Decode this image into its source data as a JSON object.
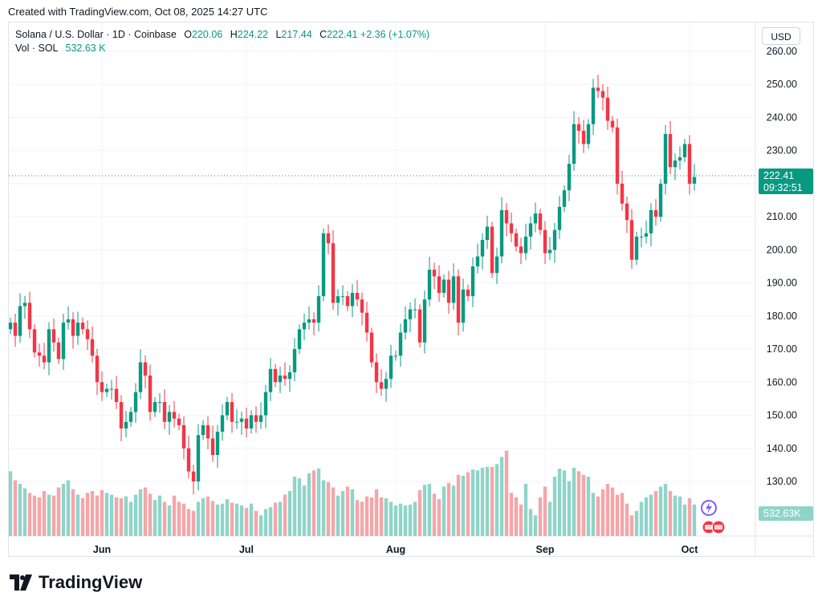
{
  "caption": "Created with TradingView.com, Oct 08, 2025 14:27 UTC",
  "legend": {
    "symbol": "Solana / U.S. Dollar · 1D · Coinbase",
    "o_label": "O",
    "o_value": "220.06",
    "h_label": "H",
    "h_value": "224.22",
    "l_label": "L",
    "l_value": "217.44",
    "c_label": "C",
    "c_value": "222.41",
    "change": "+2.36 (+1.07%)",
    "vol_label": "Vol · SOL",
    "vol_value": "532.63 K"
  },
  "currency": "USD",
  "brand": "TradingView",
  "colors": {
    "up": "#089981",
    "down": "#f23645",
    "upVol": "#8fd4c8",
    "downVol": "#f4a6a9"
  },
  "chart_data": {
    "type": "candlestick",
    "ylim": [
      120,
      265
    ],
    "yticks": [
      "130.00",
      "140.00",
      "150.00",
      "160.00",
      "170.00",
      "180.00",
      "190.00",
      "200.00",
      "210.00",
      "220.00",
      "230.00",
      "240.00",
      "250.00",
      "260.00"
    ],
    "xticks": [
      {
        "label": "Jun",
        "index": 19
      },
      {
        "label": "Jul",
        "index": 49
      },
      {
        "label": "Aug",
        "index": 80
      },
      {
        "label": "Sep",
        "index": 111
      },
      {
        "label": "Oct",
        "index": 141
      }
    ],
    "last_price_label": "222.41",
    "countdown_label": "09:32:51",
    "volume_label": "532.63K",
    "closes": [
      178,
      174,
      183,
      184,
      176,
      169,
      168,
      166,
      176,
      172,
      167,
      178,
      179,
      174,
      178,
      176,
      173,
      168,
      160,
      157,
      158,
      158,
      154,
      146,
      148,
      151,
      157,
      166,
      162,
      151,
      154,
      154,
      148,
      151,
      149,
      147,
      140,
      133,
      130,
      144,
      147,
      143,
      138,
      145,
      150,
      154,
      148,
      148,
      149,
      146,
      150,
      148,
      150,
      157,
      164,
      160,
      162,
      161,
      163,
      170,
      176,
      178,
      179,
      178,
      186,
      205,
      202,
      184,
      186,
      186,
      183,
      187,
      185,
      181,
      175,
      166,
      160,
      158,
      161,
      168,
      168,
      175,
      179,
      182,
      182,
      172,
      185,
      194,
      192,
      187,
      191,
      184,
      192,
      178,
      188,
      186,
      195,
      198,
      203,
      207,
      193,
      198,
      212,
      208,
      205,
      201,
      199,
      204,
      208,
      211,
      206,
      199,
      200,
      206,
      213,
      218,
      226,
      238,
      236,
      232,
      238,
      249,
      248,
      246,
      239,
      237,
      220,
      214,
      209,
      197,
      204,
      204,
      205,
      212,
      210,
      220,
      235,
      225,
      227,
      228,
      232,
      220,
      222
    ],
    "volume": [
      72,
      62,
      58,
      53,
      48,
      45,
      43,
      50,
      46,
      45,
      54,
      58,
      62,
      52,
      46,
      42,
      48,
      50,
      45,
      51,
      48,
      46,
      43,
      42,
      44,
      38,
      46,
      52,
      54,
      47,
      40,
      45,
      38,
      34,
      45,
      38,
      36,
      30,
      28,
      38,
      42,
      44,
      39,
      35,
      36,
      41,
      37,
      36,
      34,
      31,
      36,
      28,
      23,
      30,
      32,
      37,
      38,
      46,
      50,
      66,
      64,
      56,
      70,
      73,
      75,
      62,
      60,
      54,
      45,
      50,
      55,
      52,
      40,
      38,
      44,
      43,
      52,
      43,
      42,
      38,
      34,
      36,
      34,
      35,
      38,
      51,
      57,
      58,
      47,
      41,
      55,
      59,
      56,
      68,
      67,
      71,
      74,
      73,
      76,
      77,
      77,
      80,
      88,
      95,
      48,
      43,
      35,
      58,
      30,
      23,
      43,
      55,
      38,
      66,
      75,
      73,
      61,
      76,
      72,
      68,
      66,
      48,
      44,
      52,
      58,
      54,
      46,
      48,
      36,
      23,
      28,
      38,
      43,
      46,
      50,
      55,
      58,
      50,
      45,
      44,
      35,
      42,
      35
    ],
    "volume_max": 100
  }
}
